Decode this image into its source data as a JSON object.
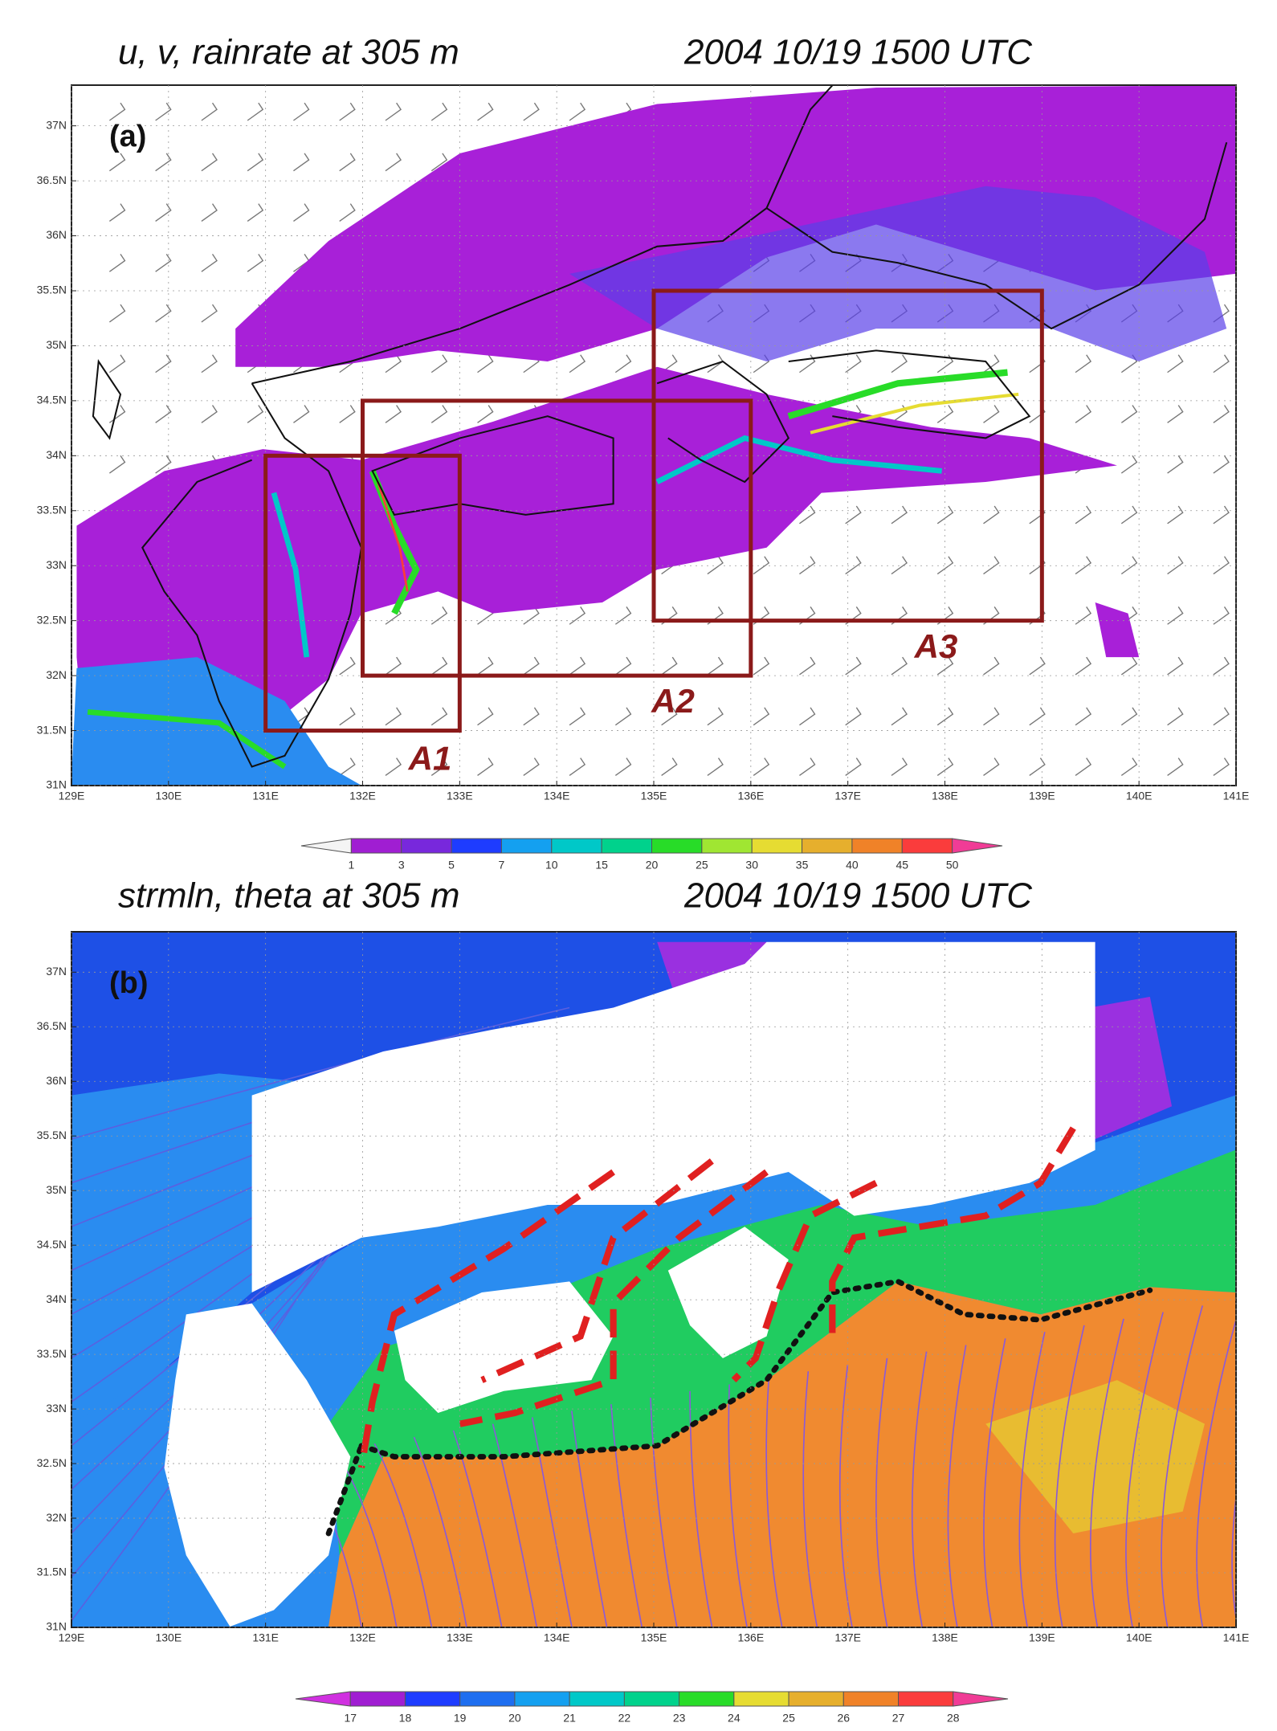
{
  "panels": [
    {
      "title_left": "u, v, rainrate at 305 m",
      "title_right": "2004 10/19 1500 UTC",
      "label": "(a)",
      "xlim": [
        129,
        141
      ],
      "ylim": [
        31,
        37.37
      ],
      "xticks": [
        {
          "value": 129,
          "label": "129E"
        },
        {
          "value": 130,
          "label": "130E"
        },
        {
          "value": 131,
          "label": "131E"
        },
        {
          "value": 132,
          "label": "132E"
        },
        {
          "value": 133,
          "label": "133E"
        },
        {
          "value": 134,
          "label": "134E"
        },
        {
          "value": 135,
          "label": "135E"
        },
        {
          "value": 136,
          "label": "136E"
        },
        {
          "value": 137,
          "label": "137E"
        },
        {
          "value": 138,
          "label": "138E"
        },
        {
          "value": 139,
          "label": "139E"
        },
        {
          "value": 140,
          "label": "140E"
        },
        {
          "value": 141,
          "label": "141E"
        }
      ],
      "yticks": [
        {
          "value": 31,
          "label": "31N"
        },
        {
          "value": 31.5,
          "label": "31.5N"
        },
        {
          "value": 32,
          "label": "32N"
        },
        {
          "value": 32.5,
          "label": "32.5N"
        },
        {
          "value": 33,
          "label": "33N"
        },
        {
          "value": 33.5,
          "label": "33.5N"
        },
        {
          "value": 34,
          "label": "34N"
        },
        {
          "value": 34.5,
          "label": "34.5N"
        },
        {
          "value": 35,
          "label": "35N"
        },
        {
          "value": 35.5,
          "label": "35.5N"
        },
        {
          "value": 36,
          "label": "36N"
        },
        {
          "value": 36.5,
          "label": "36.5N"
        },
        {
          "value": 37,
          "label": "37N"
        }
      ],
      "grid": true,
      "boxes": [
        {
          "name": "A1",
          "lon": [
            131,
            133
          ],
          "lat": [
            31.5,
            34
          ],
          "color": "#8b1a1a"
        },
        {
          "name": "A2",
          "lon": [
            132,
            136
          ],
          "lat": [
            32,
            34.5
          ],
          "color": "#8b1a1a"
        },
        {
          "name": "A3",
          "lon": [
            135,
            139
          ],
          "lat": [
            32.5,
            35.5
          ],
          "color": "#8b1a1a"
        }
      ],
      "colorbar": {
        "levels": [
          1,
          3,
          5,
          7,
          10,
          15,
          20,
          25,
          30,
          35,
          40,
          45,
          50
        ],
        "colors": [
          "#f4f4f4",
          "#a01ed2",
          "#7828dc",
          "#1e3cff",
          "#14a0f0",
          "#00c8c8",
          "#00d28c",
          "#28dc28",
          "#a0e632",
          "#e6dc32",
          "#e6af2d",
          "#f08228",
          "#fa3c3c",
          "#f03c96"
        ]
      }
    },
    {
      "title_left": "strmln, theta at 305 m",
      "title_right": "2004 10/19 1500 UTC",
      "label": "(b)",
      "xlim": [
        129,
        141
      ],
      "ylim": [
        31,
        37.37
      ],
      "xticks": [
        {
          "value": 129,
          "label": "129E"
        },
        {
          "value": 130,
          "label": "130E"
        },
        {
          "value": 131,
          "label": "131E"
        },
        {
          "value": 132,
          "label": "132E"
        },
        {
          "value": 133,
          "label": "133E"
        },
        {
          "value": 134,
          "label": "134E"
        },
        {
          "value": 135,
          "label": "135E"
        },
        {
          "value": 136,
          "label": "136E"
        },
        {
          "value": 137,
          "label": "137E"
        },
        {
          "value": 138,
          "label": "138E"
        },
        {
          "value": 139,
          "label": "139E"
        },
        {
          "value": 140,
          "label": "140E"
        },
        {
          "value": 141,
          "label": "141E"
        }
      ],
      "yticks": [
        {
          "value": 31,
          "label": "31N"
        },
        {
          "value": 31.5,
          "label": "31.5N"
        },
        {
          "value": 32,
          "label": "32N"
        },
        {
          "value": 32.5,
          "label": "32.5N"
        },
        {
          "value": 33,
          "label": "33N"
        },
        {
          "value": 33.5,
          "label": "33.5N"
        },
        {
          "value": 34,
          "label": "34N"
        },
        {
          "value": 34.5,
          "label": "34.5N"
        },
        {
          "value": 35,
          "label": "35N"
        },
        {
          "value": 35.5,
          "label": "35.5N"
        },
        {
          "value": 36,
          "label": "36N"
        },
        {
          "value": 36.5,
          "label": "36.5N"
        },
        {
          "value": 37,
          "label": "37N"
        }
      ],
      "grid": true,
      "boxes": [],
      "colorbar": {
        "levels": [
          17,
          18,
          19,
          20,
          21,
          22,
          23,
          24,
          25,
          26,
          27,
          28
        ],
        "colors": [
          "#d030e0",
          "#a01ed2",
          "#1e3cff",
          "#1e6ef0",
          "#14a0f0",
          "#00c8c8",
          "#00d28c",
          "#28dc28",
          "#e6dc32",
          "#e6af2d",
          "#f08228",
          "#fa3c3c",
          "#f03c96"
        ]
      }
    }
  ]
}
